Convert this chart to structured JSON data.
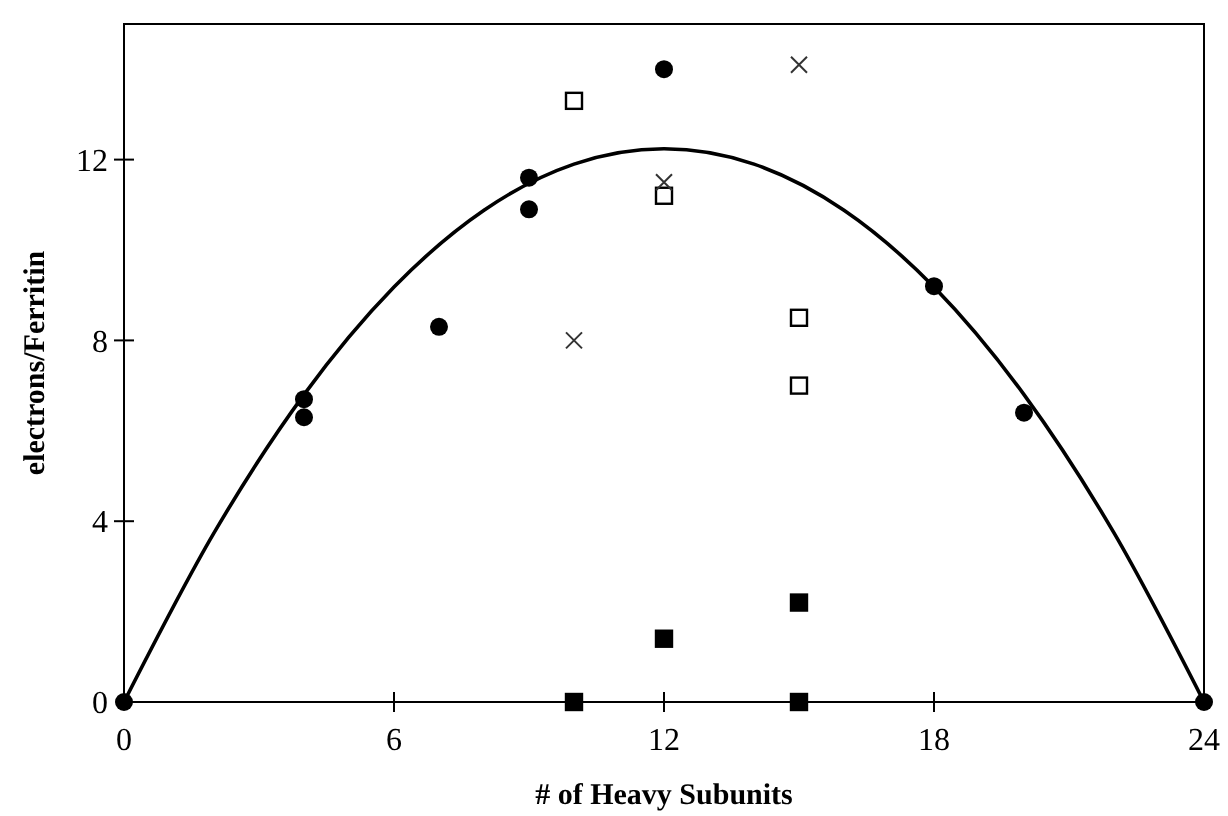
{
  "chart_data": {
    "type": "scatter",
    "xlabel": "# of Heavy Subunits",
    "ylabel": "electrons/Ferritin",
    "xlim": [
      0,
      24
    ],
    "xticks": [
      0,
      6,
      12,
      18,
      24
    ],
    "ylim": [
      0,
      15
    ],
    "yticks": [
      0,
      4,
      8,
      12
    ],
    "grid": false,
    "series": [
      {
        "color": "#000000",
        "marker": "circle",
        "x": [
          0,
          4,
          4,
          7,
          9,
          9,
          12,
          18,
          20,
          24
        ],
        "values": [
          0,
          6.7,
          6.3,
          8.3,
          11.6,
          10.9,
          14.0,
          9.2,
          6.4,
          0
        ]
      },
      {
        "color": "#ffffff",
        "marker": "square",
        "x": [
          10,
          12,
          15,
          15
        ],
        "values": [
          13.3,
          11.2,
          8.5,
          7.0
        ]
      },
      {
        "color": "#333333",
        "marker": "cross",
        "x": [
          10,
          12,
          15
        ],
        "values": [
          8.0,
          11.5,
          14.1
        ]
      },
      {
        "color": "#000000",
        "marker": "square",
        "x": [
          10,
          12,
          15,
          15
        ],
        "values": [
          0,
          1.4,
          2.2,
          0
        ]
      },
      {
        "type": "line",
        "color": "#000000",
        "marker": "none",
        "line_style": "solid",
        "x": [
          0,
          2,
          4,
          6,
          8,
          10,
          12,
          14,
          16,
          18,
          20,
          22,
          24
        ],
        "values": [
          0,
          3.74,
          6.8,
          9.18,
          10.88,
          11.9,
          12.24,
          11.9,
          10.88,
          9.18,
          6.8,
          3.74,
          0
        ]
      }
    ]
  }
}
